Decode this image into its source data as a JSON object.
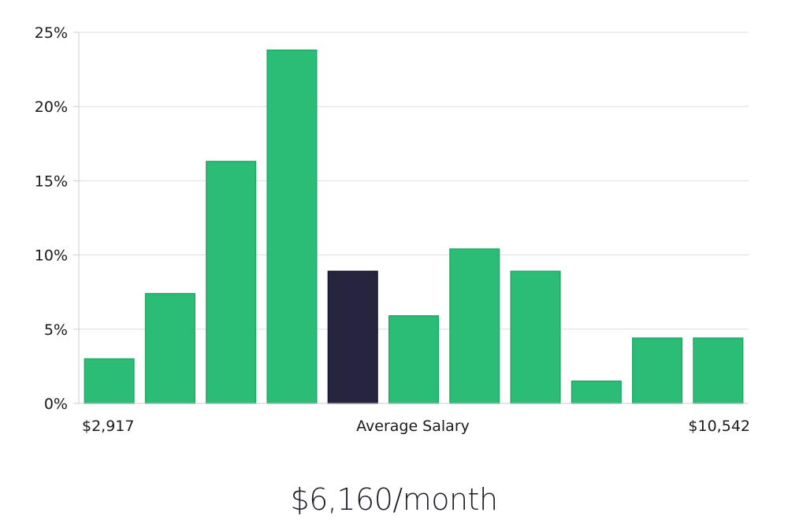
{
  "chart_data": {
    "type": "bar",
    "title": "",
    "xlabel": "Average Salary",
    "ylabel": "",
    "x_tick_labels": {
      "left": "$2,917",
      "right": "$10,542"
    },
    "y_ticks": [
      "0%",
      "5%",
      "10%",
      "15%",
      "20%",
      "25%"
    ],
    "ylim": [
      0,
      25
    ],
    "grid": true,
    "legend": "none",
    "values": [
      3.0,
      7.4,
      16.3,
      23.8,
      8.9,
      5.9,
      10.4,
      8.9,
      1.5,
      4.4,
      4.4
    ],
    "highlight_index": 4,
    "colors": {
      "bar": "#2bbd76",
      "bar_border": "#22a866",
      "highlight": "#27243f",
      "grid": "#dddddd",
      "axis": "#cccccc"
    }
  },
  "summary": {
    "amount": "$6,160/month"
  }
}
